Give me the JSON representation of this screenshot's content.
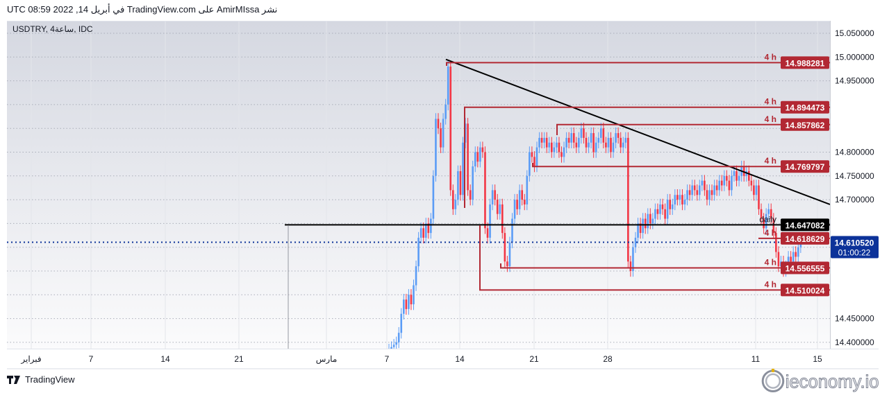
{
  "header": {
    "published_text": "نشر AmirMIssa على TradingView.com في أبريل 14, 2022 08:59 UTC"
  },
  "legend": {
    "symbol_text": "USDTRY, 4ساعة, IDC"
  },
  "footer": {
    "brand": "TradingView",
    "watermark": "ieconomy.io"
  },
  "colors": {
    "up": "#5b9cf6",
    "down": "#f23645",
    "level": "#b22833",
    "trend": "#000000",
    "current_price": "#0c3299"
  },
  "chart_data": {
    "type": "candlestick",
    "symbol": "USDTRY",
    "interval": "4h",
    "first_candle_date": "2022-03-07",
    "ylim": [
      14.39,
      15.07
    ],
    "grid": true,
    "y_ticks": [
      "15.050000",
      "15.000000",
      "14.950000",
      "14.800000",
      "14.750000",
      "14.700000",
      "14.450000",
      "14.400000"
    ],
    "x_ticks": [
      "فبراير",
      "7",
      "14",
      "21",
      "مارس",
      "7",
      "14",
      "21",
      "28",
      "11",
      "15"
    ],
    "close": [
      14.385,
      14.39,
      14.395,
      14.4,
      14.42,
      14.46,
      14.49,
      14.47,
      14.5,
      14.48,
      14.52,
      14.56,
      14.62,
      14.64,
      14.62,
      14.65,
      14.63,
      14.66,
      14.75,
      14.87,
      14.85,
      14.81,
      14.87,
      14.9,
      14.98,
      14.72,
      14.68,
      14.7,
      14.76,
      14.71,
      14.82,
      14.86,
      14.72,
      14.7,
      14.77,
      14.8,
      14.78,
      14.81,
      14.8,
      14.64,
      14.62,
      14.69,
      14.72,
      14.7,
      14.67,
      14.69,
      14.63,
      14.57,
      14.56,
      14.61,
      14.66,
      14.7,
      14.68,
      14.72,
      14.7,
      14.69,
      14.75,
      14.8,
      14.79,
      14.77,
      14.81,
      14.83,
      14.82,
      14.83,
      14.81,
      14.82,
      14.8,
      14.81,
      14.82,
      14.8,
      14.79,
      14.81,
      14.83,
      14.82,
      14.84,
      14.82,
      14.81,
      14.83,
      14.85,
      14.83,
      14.81,
      14.82,
      14.84,
      14.8,
      14.82,
      14.83,
      14.85,
      14.82,
      14.81,
      14.83,
      14.8,
      14.82,
      14.84,
      14.83,
      14.81,
      14.82,
      14.83,
      14.57,
      14.55,
      14.6,
      14.62,
      14.65,
      14.63,
      14.66,
      14.64,
      14.67,
      14.65,
      14.66,
      14.68,
      14.67,
      14.69,
      14.68,
      14.66,
      14.7,
      14.68,
      14.69,
      14.71,
      14.7,
      14.71,
      14.69,
      14.7,
      14.72,
      14.71,
      14.73,
      14.72,
      14.71,
      14.73,
      14.74,
      14.72,
      14.7,
      14.72,
      14.71,
      14.73,
      14.72,
      14.74,
      14.73,
      14.75,
      14.74,
      14.72,
      14.75,
      14.76,
      14.74,
      14.75,
      14.77,
      14.75,
      14.76,
      14.74,
      14.73,
      14.71,
      14.73,
      14.68,
      14.66,
      14.64,
      14.67,
      14.68,
      14.66,
      14.63,
      14.59,
      14.56,
      14.57,
      14.55,
      14.56,
      14.58,
      14.57,
      14.59,
      14.58,
      14.6,
      14.61
    ],
    "levels": [
      {
        "price": 14.988281,
        "label": "14.988281",
        "tag": "4 h",
        "color": "level"
      },
      {
        "price": 14.894473,
        "label": "14.894473",
        "tag": "4 h",
        "color": "level"
      },
      {
        "price": 14.857862,
        "label": "14.857862",
        "tag": "4 h",
        "color": "level"
      },
      {
        "price": 14.769797,
        "label": "14.769797",
        "tag": "4 h",
        "color": "level"
      },
      {
        "price": 14.647082,
        "label": "14.647082",
        "tag": "daily",
        "color": "trend"
      },
      {
        "price": 14.618629,
        "label": "14.618629",
        "tag": "4 h",
        "color": "level"
      },
      {
        "price": 14.556555,
        "label": "14.556555",
        "tag": "4 h",
        "color": "level"
      },
      {
        "price": 14.510024,
        "label": "14.510024",
        "tag": "4 h",
        "color": "level"
      }
    ],
    "current_price": {
      "price": 14.61052,
      "label": "14.610520",
      "countdown": "01:00:22"
    },
    "trendline": {
      "from": 14.995,
      "to": 14.69
    }
  }
}
